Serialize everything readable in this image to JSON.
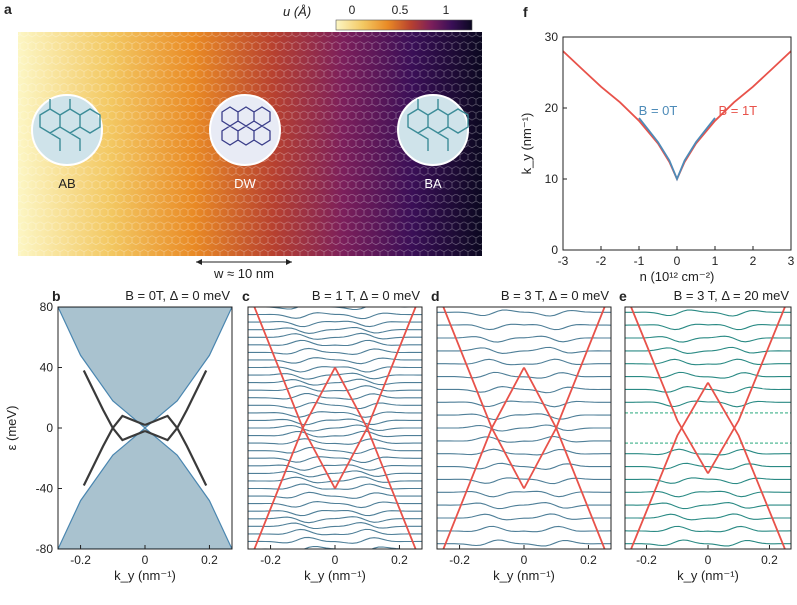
{
  "panel_a": {
    "label": "a",
    "colorbar": {
      "title": "u (Å)",
      "ticks": [
        "0",
        "0.5",
        "1"
      ]
    },
    "regions": [
      "AB",
      "DW",
      "BA"
    ],
    "width_annotation": "w ≈ 10 nm"
  },
  "chart_data": [
    {
      "id": "b",
      "type": "line",
      "label": "b",
      "title": "B = 0T, Δ = 0 meV",
      "xlabel": "k_y (nm⁻¹)",
      "ylabel": "ε (meV)",
      "xlim": [
        -0.27,
        0.27
      ],
      "ylim": [
        -80,
        80
      ],
      "xticks": [
        "-0.2",
        "0",
        "0.2"
      ],
      "yticks": [
        "-80",
        "-40",
        "0",
        "40",
        "80"
      ],
      "series": [
        {
          "style": "shaded continuum",
          "x": [
            -0.27,
            -0.2,
            -0.1,
            0,
            0.1,
            0.2,
            0.27
          ],
          "y_upper": [
            80,
            48,
            18,
            0,
            18,
            48,
            80
          ],
          "y_lower": [
            -80,
            -48,
            -18,
            0,
            -18,
            -48,
            -80
          ]
        },
        {
          "style": "dark",
          "x": [
            -0.19,
            -0.13,
            -0.1,
            -0.07,
            0.0
          ],
          "y": [
            -38,
            -12,
            0,
            8,
            2
          ]
        },
        {
          "style": "dark",
          "x": [
            -0.19,
            -0.13,
            -0.1,
            -0.07,
            0.0
          ],
          "y": [
            38,
            12,
            0,
            -8,
            -2
          ]
        },
        {
          "style": "dark",
          "x": [
            0.19,
            0.13,
            0.1,
            0.07,
            0.0
          ],
          "y": [
            -38,
            -12,
            0,
            8,
            2
          ]
        },
        {
          "style": "dark",
          "x": [
            0.19,
            0.13,
            0.1,
            0.07,
            0.0
          ],
          "y": [
            38,
            12,
            0,
            -8,
            -2
          ]
        }
      ]
    },
    {
      "id": "c",
      "type": "line",
      "label": "c",
      "title": "B = 1 T, Δ = 0 meV",
      "xlabel": "k_y (nm⁻¹)",
      "ylabel": "",
      "xlim": [
        -0.27,
        0.27
      ],
      "ylim": [
        -80,
        80
      ],
      "xticks": [
        "-0.2",
        "0",
        "0.2"
      ],
      "yticks": [],
      "landau_level_spacing_meV": 5,
      "series": [
        {
          "style": "red",
          "x": [
            -0.25,
            -0.1,
            0.0
          ],
          "y": [
            80,
            0,
            -40
          ]
        },
        {
          "style": "red",
          "x": [
            -0.25,
            -0.1,
            0.0
          ],
          "y": [
            -80,
            0,
            40
          ]
        },
        {
          "style": "red",
          "x": [
            0.25,
            0.1,
            0.0
          ],
          "y": [
            80,
            0,
            -40
          ]
        },
        {
          "style": "red",
          "x": [
            0.25,
            0.1,
            0.0
          ],
          "y": [
            -80,
            0,
            40
          ]
        }
      ]
    },
    {
      "id": "d",
      "type": "line",
      "label": "d",
      "title": "B = 3 T, Δ = 0 meV",
      "xlabel": "k_y (nm⁻¹)",
      "ylabel": "",
      "xlim": [
        -0.27,
        0.27
      ],
      "ylim": [
        -80,
        80
      ],
      "xticks": [
        "-0.2",
        "0",
        "0.2"
      ],
      "yticks": [],
      "landau_level_spacing_meV": 8.5,
      "series": [
        {
          "style": "red",
          "x": [
            -0.25,
            -0.1,
            0.0
          ],
          "y": [
            80,
            0,
            -40
          ]
        },
        {
          "style": "red",
          "x": [
            -0.25,
            -0.1,
            0.0
          ],
          "y": [
            -80,
            0,
            40
          ]
        },
        {
          "style": "red",
          "x": [
            0.25,
            0.1,
            0.0
          ],
          "y": [
            80,
            0,
            -40
          ]
        },
        {
          "style": "red",
          "x": [
            0.25,
            0.1,
            0.0
          ],
          "y": [
            -80,
            0,
            40
          ]
        }
      ]
    },
    {
      "id": "e",
      "type": "line",
      "label": "e",
      "title": "B = 3 T, Δ = 20 meV",
      "xlabel": "k_y (nm⁻¹)",
      "ylabel": "",
      "xlim": [
        -0.27,
        0.27
      ],
      "ylim": [
        -80,
        80
      ],
      "xticks": [
        "-0.2",
        "0",
        "0.2"
      ],
      "yticks": [],
      "landau_level_spacing_meV": 8.5,
      "series": [
        {
          "style": "red",
          "x": [
            -0.25,
            -0.1,
            0.0
          ],
          "y": [
            80,
            5,
            -30
          ]
        },
        {
          "style": "red",
          "x": [
            -0.25,
            -0.1,
            0.0
          ],
          "y": [
            -80,
            -5,
            30
          ]
        },
        {
          "style": "red",
          "x": [
            0.25,
            0.1,
            0.0
          ],
          "y": [
            80,
            5,
            -30
          ]
        },
        {
          "style": "red",
          "x": [
            0.25,
            0.1,
            0.0
          ],
          "y": [
            -80,
            -5,
            30
          ]
        }
      ]
    },
    {
      "id": "f",
      "type": "line",
      "label": "f",
      "xlabel": "n (10¹² cm⁻²)",
      "ylabel": "k_y (nm⁻¹)",
      "xlim": [
        -3,
        3
      ],
      "ylim": [
        0,
        30
      ],
      "xticks": [
        "-3",
        "-2",
        "-1",
        "0",
        "1",
        "2",
        "3"
      ],
      "yticks": [
        "0",
        "10",
        "20",
        "30"
      ],
      "annotations": [
        "B = 0T",
        "B = 1T"
      ],
      "series": [
        {
          "name": "B = 1T",
          "color": "#e8524a",
          "x": [
            -3,
            -2.5,
            -2,
            -1.5,
            -1,
            -0.5,
            -0.2,
            0,
            0.2,
            0.5,
            1,
            1.5,
            2,
            2.5,
            3
          ],
          "y": [
            28,
            25.5,
            23,
            20.8,
            18.2,
            15,
            12.4,
            10,
            12.4,
            15,
            18.2,
            20.8,
            23,
            25.5,
            28
          ]
        },
        {
          "name": "B = 0T",
          "color": "#4d8bb8",
          "x": [
            -1,
            -0.5,
            -0.2,
            0,
            0.2,
            0.5,
            1
          ],
          "y": [
            18.6,
            15.2,
            12.6,
            10,
            12.6,
            15.2,
            18.6
          ]
        }
      ]
    }
  ]
}
